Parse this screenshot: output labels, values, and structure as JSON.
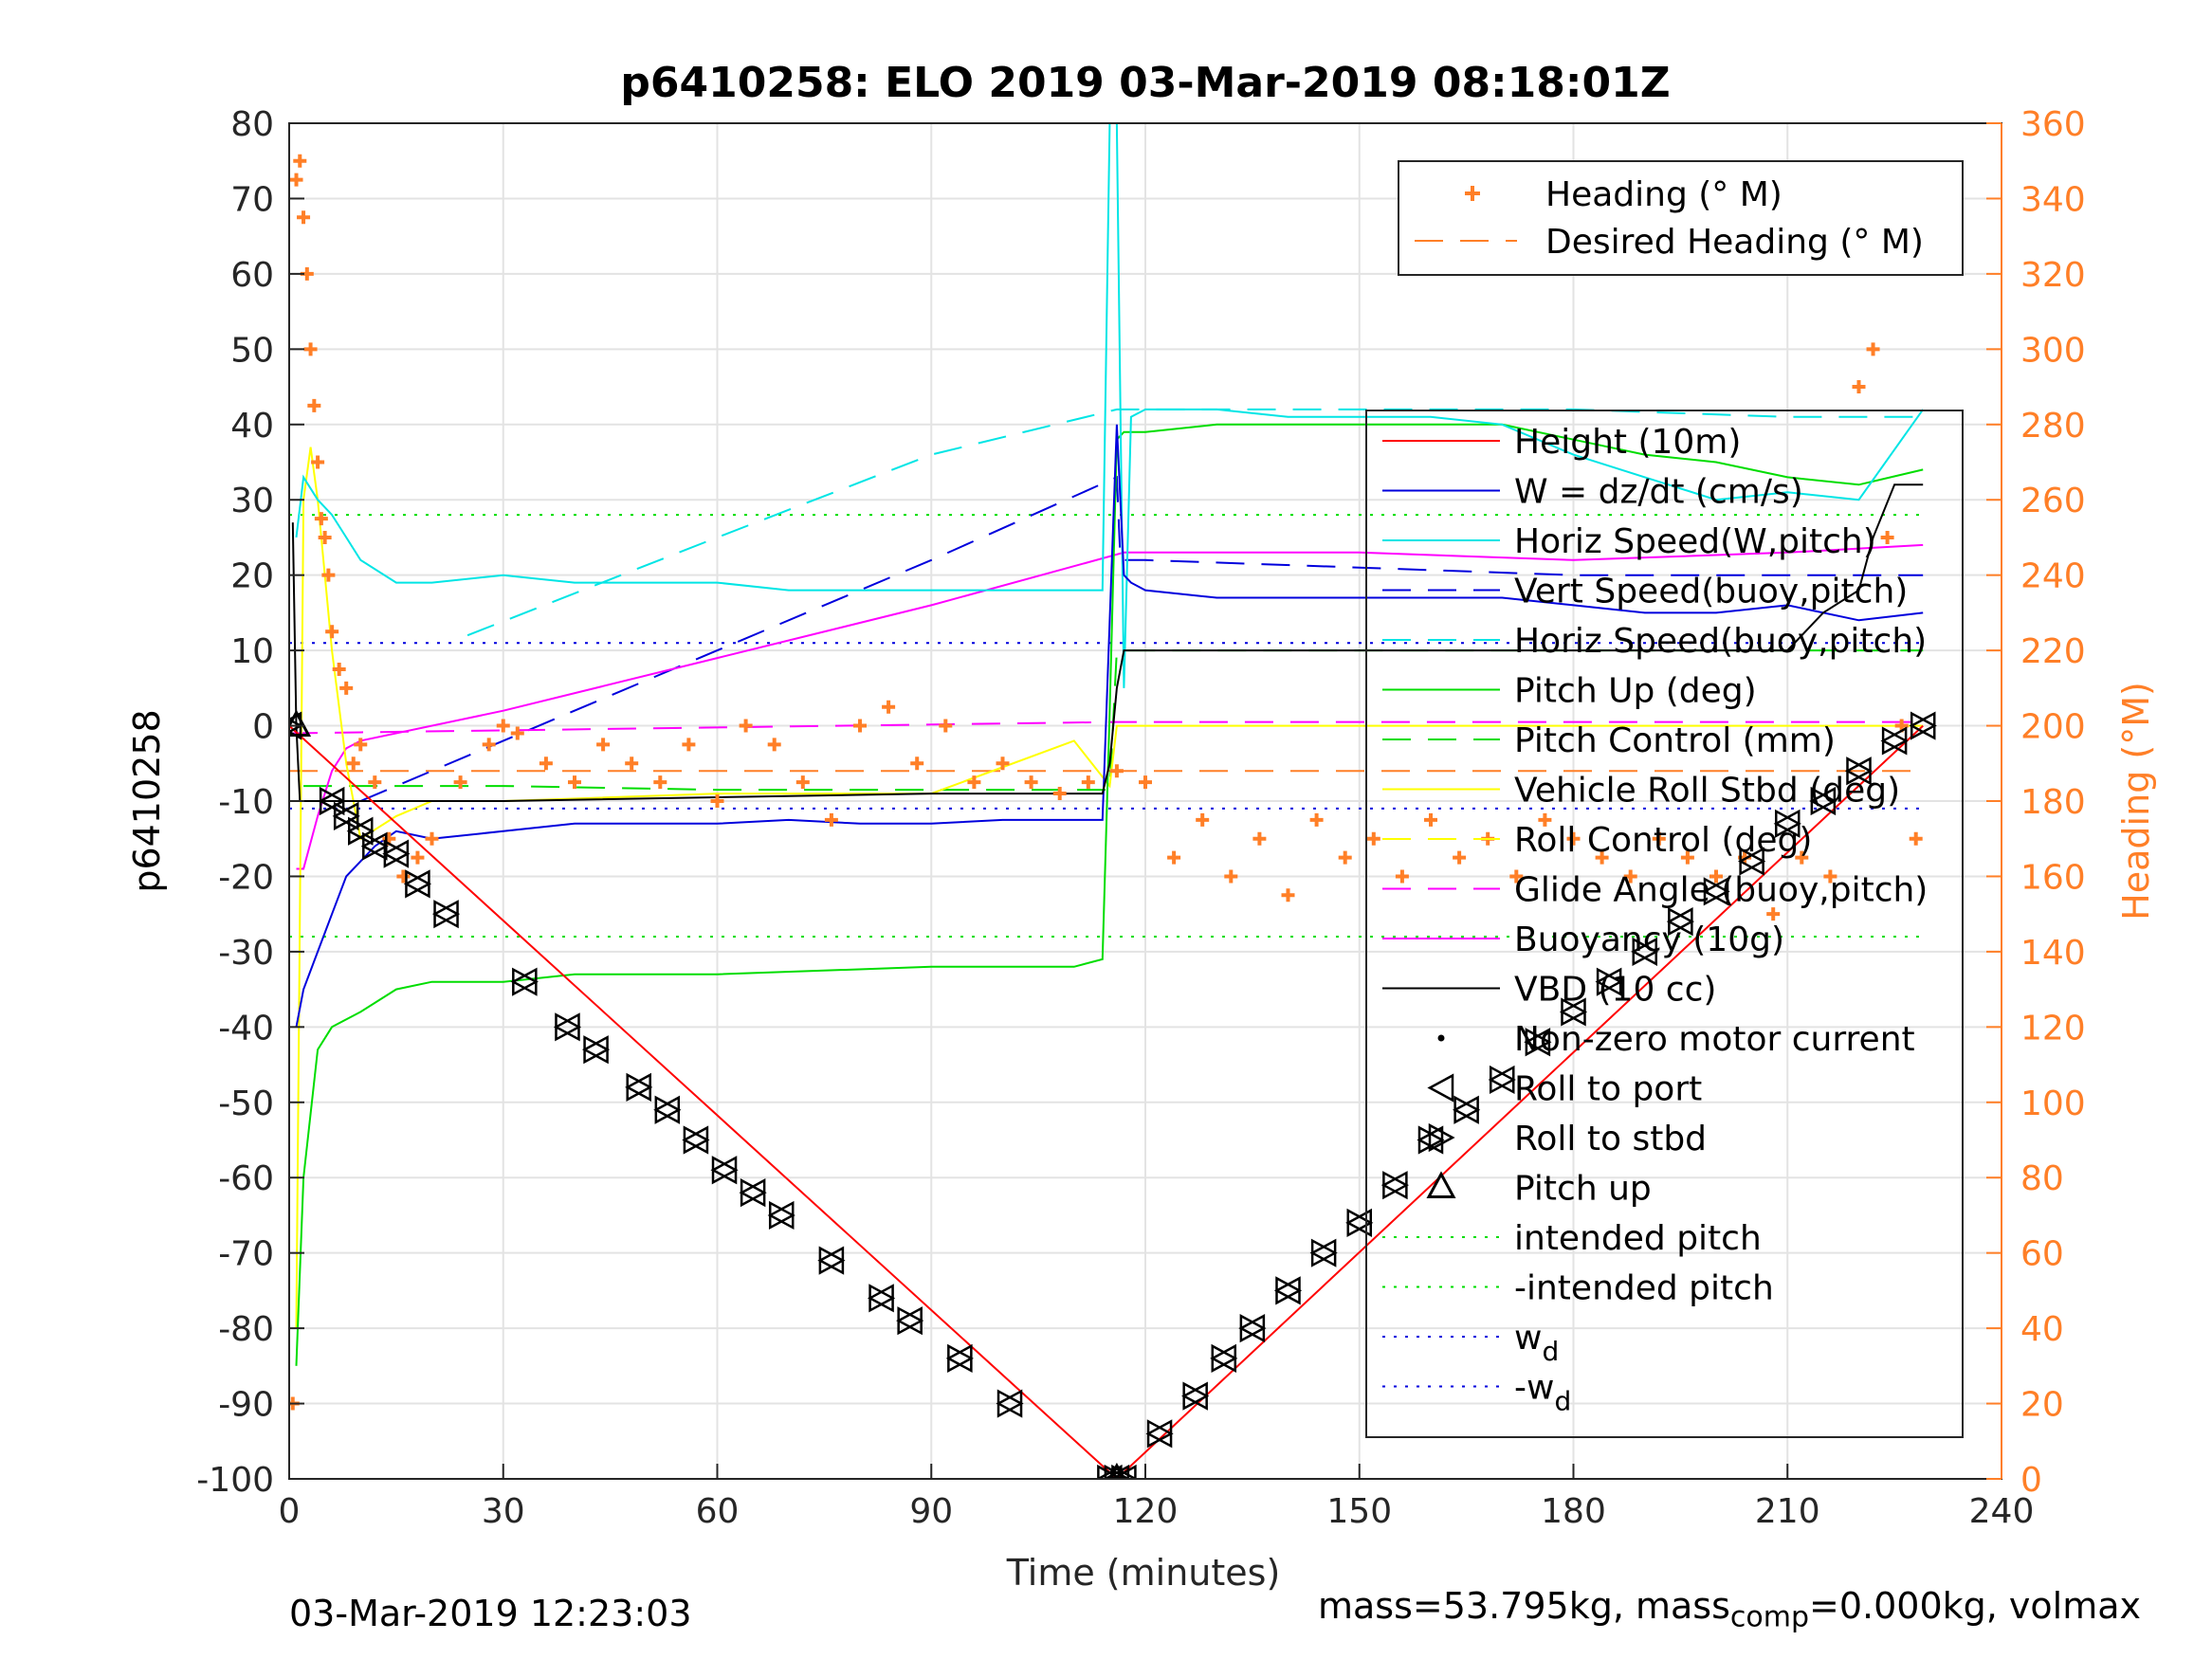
{
  "chart_data": {
    "type": "line",
    "title": "p6410258: ELO 2019 03-Mar-2019 08:18:01Z",
    "xlabel": "Time (minutes)",
    "ylabel_left": "p6410258",
    "ylabel_right": "Heading (°M)",
    "xlim": [
      0,
      240
    ],
    "ylim_left": [
      -100,
      80
    ],
    "ylim_right": [
      0,
      360
    ],
    "x_ticks": [
      0,
      30,
      60,
      90,
      120,
      150,
      180,
      210,
      240
    ],
    "y_left_ticks": [
      -100,
      -90,
      -80,
      -70,
      -60,
      -50,
      -40,
      -30,
      -20,
      -10,
      0,
      10,
      20,
      30,
      40,
      50,
      60,
      70,
      80
    ],
    "y_right_ticks": [
      0,
      20,
      40,
      60,
      80,
      100,
      120,
      140,
      160,
      180,
      200,
      220,
      240,
      260,
      280,
      300,
      320,
      340,
      360
    ],
    "grid": true,
    "legend_heading": [
      "Heading (° M)",
      "Desired Heading (° M)"
    ],
    "legend_main": [
      {
        "label": "Height (10m)",
        "color": "#ff0000",
        "style": "solid"
      },
      {
        "label": "W = dz/dt (cm/s)",
        "color": "#0000dd",
        "style": "solid"
      },
      {
        "label": "Horiz Speed(W,pitch)",
        "color": "#00e5e5",
        "style": "solid"
      },
      {
        "label": "Vert Speed(buoy,pitch)",
        "color": "#0000dd",
        "style": "dash"
      },
      {
        "label": "Horiz Speed(buoy,pitch)",
        "color": "#00e5e5",
        "style": "dash"
      },
      {
        "label": "Pitch Up (deg)",
        "color": "#00dd00",
        "style": "solid"
      },
      {
        "label": "Pitch Control (mm)",
        "color": "#00dd00",
        "style": "dash"
      },
      {
        "label": "Vehicle Roll Stbd (deg)",
        "color": "#ffff00",
        "style": "solid"
      },
      {
        "label": "Roll Control (deg)",
        "color": "#ffff00",
        "style": "dash"
      },
      {
        "label": "Glide Angle (buoy,pitch)",
        "color": "#ff00ff",
        "style": "dash"
      },
      {
        "label": "Buoyancy (10g)",
        "color": "#ff00ff",
        "style": "solid"
      },
      {
        "label": "VBD (10 cc)",
        "color": "#000000",
        "style": "solid"
      },
      {
        "label": "Non-zero motor current",
        "color": "#000000",
        "style": "dot"
      },
      {
        "label": "Roll to port",
        "color": "#000000",
        "style": "tri-left"
      },
      {
        "label": "Roll to stbd",
        "color": "#000000",
        "style": "tri-right"
      },
      {
        "label": "Pitch up",
        "color": "#000000",
        "style": "tri-up"
      },
      {
        "label": "intended pitch",
        "color": "#00dd00",
        "style": "dotted"
      },
      {
        "label": "-intended pitch",
        "color": "#00dd00",
        "style": "dotted"
      },
      {
        "label": "w",
        "sub": "d",
        "color": "#0000dd",
        "style": "dotted"
      },
      {
        "label": "-w",
        "sub": "d",
        "color": "#0000dd",
        "style": "dotted"
      }
    ],
    "series": [
      {
        "name": "Height (10m)",
        "axis": "left",
        "x": [
          0,
          116,
          229
        ],
        "y": [
          0,
          -100,
          0
        ]
      },
      {
        "name": "W = dz/dt (cm/s)",
        "axis": "left",
        "x": [
          1,
          2,
          4,
          6,
          8,
          10,
          12,
          15,
          20,
          30,
          40,
          50,
          60,
          70,
          80,
          90,
          100,
          110,
          114,
          116,
          117,
          118,
          120,
          130,
          140,
          150,
          160,
          170,
          180,
          190,
          200,
          210,
          220,
          229
        ],
        "y": [
          -40,
          -35,
          -30,
          -25,
          -20,
          -18,
          -16,
          -14,
          -15,
          -14,
          -13,
          -13,
          -13,
          -12.5,
          -13,
          -13,
          -12.5,
          -12.5,
          -12.5,
          40,
          20,
          19,
          18,
          17,
          17,
          17,
          17,
          17,
          16,
          15,
          15,
          16,
          14,
          15
        ]
      },
      {
        "name": "Horiz Speed(W,pitch)",
        "axis": "left",
        "x": [
          1,
          2,
          4,
          6,
          8,
          10,
          15,
          20,
          30,
          40,
          50,
          60,
          70,
          80,
          90,
          100,
          110,
          114,
          115,
          116,
          117,
          118,
          120,
          130,
          140,
          150,
          160,
          170,
          180,
          190,
          200,
          210,
          220,
          229
        ],
        "y": [
          25,
          33,
          30,
          28,
          25,
          22,
          19,
          19,
          20,
          19,
          19,
          19,
          18,
          18,
          18,
          18,
          18,
          18,
          80,
          80,
          5,
          41,
          42,
          42,
          41,
          41,
          41,
          40,
          36,
          33,
          30,
          31,
          30,
          42
        ]
      },
      {
        "name": "Vert Speed(buoy,pitch)",
        "axis": "left",
        "x": [
          10,
          30,
          60,
          90,
          116,
          116.5,
          120,
          150,
          180,
          210,
          229
        ],
        "y": [
          -10,
          -2,
          10,
          22,
          33,
          22,
          22,
          21,
          20,
          20,
          20
        ]
      },
      {
        "name": "Horiz Speed(buoy,pitch)",
        "axis": "left",
        "x": [
          25,
          60,
          90,
          116,
          120,
          150,
          180,
          210,
          229
        ],
        "y": [
          12,
          25,
          36,
          42,
          42,
          42,
          42,
          41,
          41
        ]
      },
      {
        "name": "Pitch Up (deg)",
        "axis": "left",
        "x": [
          1,
          2,
          4,
          6,
          10,
          15,
          20,
          30,
          40,
          60,
          90,
          110,
          114,
          115,
          116,
          117,
          118,
          120,
          130,
          150,
          170,
          180,
          190,
          200,
          210,
          220,
          229
        ],
        "y": [
          -85,
          -60,
          -43,
          -40,
          -38,
          -35,
          -34,
          -34,
          -33,
          -33,
          -32,
          -32,
          -31,
          2,
          38,
          39,
          39,
          39,
          40,
          40,
          40,
          38,
          36,
          35,
          33,
          32,
          34
        ]
      },
      {
        "name": "Pitch Control (mm)",
        "axis": "left",
        "x": [
          2,
          30,
          60,
          90,
          115,
          116,
          150,
          200,
          229
        ],
        "y": [
          -8,
          -8,
          -8.5,
          -8.5,
          -8.5,
          10,
          10,
          10,
          10
        ]
      },
      {
        "name": "Vehicle Roll Stbd (deg)",
        "axis": "left",
        "x": [
          1,
          2,
          3,
          4,
          6,
          8,
          10,
          15,
          20,
          30,
          60,
          90,
          110,
          115,
          116,
          120,
          150,
          180,
          210,
          229
        ],
        "y": [
          -80,
          30,
          37,
          30,
          10,
          -5,
          -15,
          -12,
          -10,
          -10,
          -9,
          -9,
          -2,
          -8,
          0,
          0,
          0,
          0,
          0,
          0
        ]
      },
      {
        "name": "Glide Angle (buoy,pitch)",
        "axis": "left",
        "x": [
          0,
          116,
          117,
          229
        ],
        "y": [
          -1,
          0.5,
          0.5,
          0.5
        ]
      },
      {
        "name": "Buoyancy (10g)",
        "axis": "left",
        "x": [
          1,
          2,
          4,
          6,
          8,
          10,
          30,
          60,
          90,
          117,
          150,
          180,
          210,
          229
        ],
        "y": [
          -19,
          -19,
          -12,
          -6,
          -3,
          -2,
          2,
          9,
          16,
          23,
          23,
          22,
          23,
          24
        ]
      },
      {
        "name": "VBD (10 cc)",
        "axis": "left",
        "x": [
          0.5,
          1,
          1.5,
          2,
          30,
          60,
          90,
          114,
          115,
          116,
          117,
          120,
          150,
          180,
          210,
          215,
          220,
          222,
          225,
          229
        ],
        "y": [
          27,
          0,
          -10,
          -10,
          -10,
          -9.5,
          -9,
          -9,
          -5,
          5,
          10,
          10,
          10,
          10,
          10,
          15,
          18,
          25,
          32,
          32
        ]
      },
      {
        "name": "intended pitch",
        "axis": "left",
        "x": [
          0,
          229
        ],
        "y": [
          28,
          28
        ]
      },
      {
        "name": "-intended pitch",
        "axis": "left",
        "x": [
          0,
          229
        ],
        "y": [
          -28,
          -28
        ]
      },
      {
        "name": "w_d",
        "axis": "left",
        "x": [
          0,
          229
        ],
        "y": [
          11,
          11
        ]
      },
      {
        "name": "-w_d",
        "axis": "left",
        "x": [
          0,
          229
        ],
        "y": [
          -11,
          -11
        ]
      },
      {
        "name": "Desired Heading (° M)",
        "axis": "right",
        "x": [
          0,
          229
        ],
        "y": [
          188,
          188
        ]
      },
      {
        "name": "Heading (° M)",
        "axis": "right",
        "x": [
          0.5,
          1,
          1.5,
          2,
          2.5,
          3,
          3.5,
          4,
          4.5,
          5,
          5.5,
          6,
          7,
          8,
          9,
          10,
          12,
          14,
          16,
          18,
          20,
          24,
          28,
          30,
          32,
          36,
          40,
          44,
          48,
          52,
          56,
          60,
          64,
          68,
          72,
          76,
          80,
          84,
          88,
          92,
          96,
          100,
          104,
          108,
          112,
          116,
          120,
          124,
          128,
          132,
          136,
          140,
          144,
          148,
          152,
          156,
          160,
          164,
          168,
          172,
          176,
          180,
          184,
          188,
          192,
          196,
          200,
          204,
          208,
          212,
          216,
          220,
          222,
          224,
          226,
          228
        ],
        "y": [
          20,
          345,
          350,
          335,
          320,
          300,
          285,
          270,
          255,
          250,
          240,
          225,
          215,
          210,
          190,
          195,
          185,
          170,
          160,
          165,
          170,
          185,
          195,
          200,
          198,
          190,
          185,
          195,
          190,
          185,
          195,
          180,
          200,
          195,
          185,
          175,
          200,
          205,
          190,
          200,
          185,
          190,
          185,
          182,
          185,
          188,
          185,
          165,
          175,
          160,
          170,
          155,
          175,
          165,
          170,
          160,
          175,
          165,
          170,
          160,
          175,
          170,
          165,
          160,
          170,
          165,
          160,
          165,
          150,
          165,
          160,
          290,
          300,
          250,
          200,
          170
        ]
      },
      {
        "name": "Roll markers",
        "axis": "left",
        "x": [
          0,
          6,
          8,
          10,
          12,
          15,
          18,
          22,
          33,
          39,
          43,
          49,
          53,
          57,
          61,
          65,
          69,
          76,
          83,
          87,
          94,
          101,
          115,
          116,
          117,
          122,
          127,
          131,
          135,
          140,
          145,
          150,
          155,
          160,
          165,
          170,
          175,
          180,
          185,
          190,
          195,
          200,
          205,
          210,
          215,
          220,
          225,
          229
        ],
        "y": [
          0,
          -10,
          -12,
          -14,
          -16,
          -17,
          -21,
          -25,
          -34,
          -40,
          -43,
          -48,
          -51,
          -55,
          -59,
          -62,
          -65,
          -71,
          -76,
          -79,
          -84,
          -90,
          -100,
          -100,
          -100,
          -94,
          -89,
          -84,
          -80,
          -75,
          -70,
          -66,
          -61,
          -55,
          -51,
          -47,
          -42,
          -38,
          -34,
          -30,
          -26,
          -22,
          -18,
          -13,
          -10,
          -6,
          -2,
          0
        ]
      }
    ]
  },
  "footer": {
    "timestamp": "03-Mar-2019 12:23:03",
    "mass_prefix": "mass=53.795kg, mass",
    "mass_sub": "comp",
    "mass_suffix": "=0.000kg, volmax"
  }
}
